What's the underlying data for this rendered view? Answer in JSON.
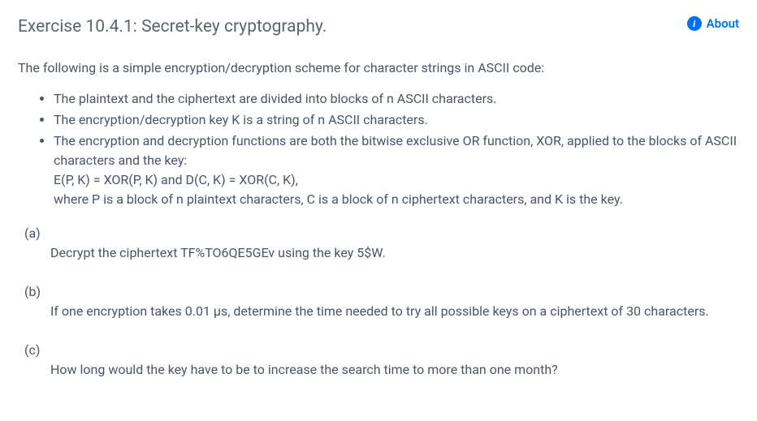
{
  "header": {
    "title": "Exercise 10.4.1: Secret-key cryptography.",
    "about_label": "About"
  },
  "intro": "The following is a simple encryption/decryption scheme for character strings in ASCII code:",
  "bullets": [
    "The plaintext and the ciphertext are divided into blocks of n ASCII characters.",
    "The encryption/decryption key K is a string of n ASCII characters.",
    "The encryption and decryption functions are both the bitwise exclusive OR function, XOR, applied to the blocks of ASCII characters and the key:"
  ],
  "formula_line": "E(P, K) = XOR(P, K) and D(C, K) = XOR(C, K),",
  "where_line": "where P is a block of n plaintext characters, C is a block of n ciphertext characters, and K is the key.",
  "parts": {
    "a": {
      "label": "(a)",
      "text": "Decrypt the ciphertext TF%TO6QE5GEv using the key 5$W."
    },
    "b": {
      "label": "(b)",
      "text": "If one encryption takes 0.01 μs, determine the time needed to try all possible keys on a ciphertext of 30 characters."
    },
    "c": {
      "label": "(c)",
      "text": "How long would the key have to be to increase the search time to more than one month?"
    }
  },
  "colors": {
    "text": "#4a5568",
    "link": "#0073e6",
    "background": "#ffffff"
  }
}
